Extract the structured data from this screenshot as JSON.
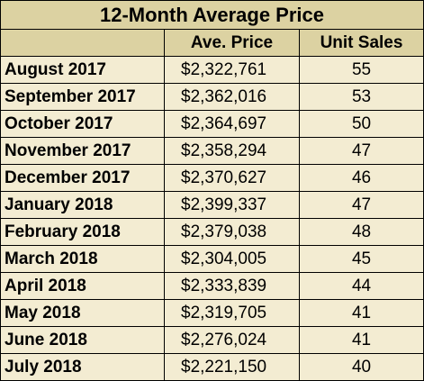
{
  "table": {
    "title": "12-Month Average Price",
    "headers": [
      "",
      "Ave. Price",
      "Unit Sales"
    ],
    "rows": [
      {
        "month": "August 2017",
        "price": "$2,322,761",
        "sales": "55"
      },
      {
        "month": "September 2017",
        "price": "$2,362,016",
        "sales": "53"
      },
      {
        "month": "October 2017",
        "price": "$2,364,697",
        "sales": "50"
      },
      {
        "month": "November 2017",
        "price": "$2,358,294",
        "sales": "47"
      },
      {
        "month": "December 2017",
        "price": "$2,370,627",
        "sales": "46"
      },
      {
        "month": "January 2018",
        "price": "$2,399,337",
        "sales": "47"
      },
      {
        "month": "February 2018",
        "price": "$2,379,038",
        "sales": "48"
      },
      {
        "month": "March 2018",
        "price": "$2,304,005",
        "sales": "45"
      },
      {
        "month": "April 2018",
        "price": "$2,333,839",
        "sales": "44"
      },
      {
        "month": "May 2018",
        "price": "$2,319,705",
        "sales": "41"
      },
      {
        "month": "June 2018",
        "price": "$2,276,024",
        "sales": "41"
      },
      {
        "month": "July 2018",
        "price": "$2,221,150",
        "sales": "40"
      }
    ]
  },
  "colors": {
    "header_fill": "#dcd2a2",
    "cell_fill": "#f3ecd2",
    "border": "#000000"
  }
}
